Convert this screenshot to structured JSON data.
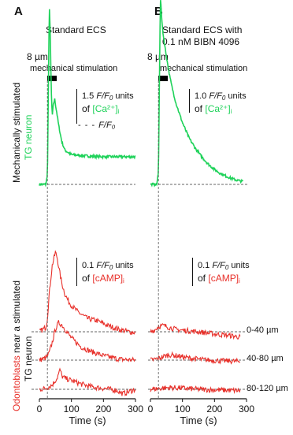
{
  "panels": [
    {
      "letter": "A",
      "condition_line1": "Standard ECS",
      "condition_line2": "",
      "stim_size": "8 µm",
      "stim_label": "mechanical stimulation",
      "ca_scale_value": "1.5",
      "ca_scale_units": "units",
      "ca_label": "[Ca²⁺]",
      "ca_sub": "i",
      "camp_scale_value": "0.1",
      "camp_scale_units": "units",
      "camp_label": "[cAMP]",
      "camp_sub": "i",
      "baseline_legend": "F/F₀"
    },
    {
      "letter": "B",
      "condition_line1": "Standard ECS with",
      "condition_line2": "0.1 nM BIBN 4096",
      "stim_size": "8 µm",
      "stim_label": "mechanical stimulation",
      "ca_scale_value": "1.0",
      "ca_scale_units": "units",
      "ca_label": "[Ca²⁺]",
      "ca_sub": "i",
      "camp_scale_value": "0.1",
      "camp_scale_units": "units",
      "camp_label": "[cAMP]",
      "camp_sub": "i"
    }
  ],
  "left_labels": {
    "top_line1": "Mechanically stimulated",
    "top_line2": "TG neuron",
    "bottom_line1_red": "Odontoblasts",
    "bottom_line1_rest": " near a stimulated",
    "bottom_line2": "TG neuron"
  },
  "ratio_text": "F/F",
  "ratio_sub": "0",
  "of_text": "of",
  "distance_labels": [
    "0-40 µm",
    "40-80 µm",
    "80-120 µm"
  ],
  "chart_data": {
    "type": "line",
    "x_label": "Time (s)",
    "x_ticks": [
      0,
      100,
      200,
      300
    ],
    "xlim": [
      0,
      300
    ],
    "stimulus_time": 25,
    "colors": {
      "ca": "#1fd25a",
      "camp": "#e8302a",
      "axis": "#111111"
    },
    "panels": [
      {
        "letter": "A",
        "ca": [
          [
            0,
            0
          ],
          [
            20,
            0
          ],
          [
            25,
            0.2
          ],
          [
            28,
            2.2
          ],
          [
            31,
            4.2
          ],
          [
            34,
            3.6
          ],
          [
            37,
            2.2
          ],
          [
            40,
            1.6
          ],
          [
            44,
            1.9
          ],
          [
            48,
            2.0
          ],
          [
            52,
            1.8
          ],
          [
            60,
            1.4
          ],
          [
            70,
            1.0
          ],
          [
            80,
            0.8
          ],
          [
            90,
            0.75
          ],
          [
            100,
            0.7
          ],
          [
            130,
            0.68
          ],
          [
            160,
            0.66
          ],
          [
            200,
            0.65
          ],
          [
            250,
            0.65
          ],
          [
            300,
            0.65
          ]
        ],
        "camp": [
          {
            "distance": "0-40 µm",
            "points": [
              [
                0,
                0
              ],
              [
                10,
                0.005
              ],
              [
                20,
                0.01
              ],
              [
                25,
                0.03
              ],
              [
                30,
                0.08
              ],
              [
                40,
                0.15
              ],
              [
                50,
                0.18
              ],
              [
                55,
                0.17
              ],
              [
                62,
                0.14
              ],
              [
                70,
                0.11
              ],
              [
                80,
                0.085
              ],
              [
                90,
                0.07
              ],
              [
                100,
                0.06
              ],
              [
                120,
                0.045
              ],
              [
                150,
                0.03
              ],
              [
                180,
                0.025
              ],
              [
                210,
                0.015
              ],
              [
                250,
                0.005
              ],
              [
                280,
                0.0
              ],
              [
                300,
                -0.002
              ]
            ]
          },
          {
            "distance": "40-80 µm",
            "points": [
              [
                0,
                0
              ],
              [
                20,
                0.005
              ],
              [
                30,
                0.015
              ],
              [
                40,
                0.04
              ],
              [
                50,
                0.07
              ],
              [
                60,
                0.085
              ],
              [
                70,
                0.08
              ],
              [
                80,
                0.07
              ],
              [
                100,
                0.05
              ],
              [
                130,
                0.03
              ],
              [
                160,
                0.02
              ],
              [
                200,
                0.01
              ],
              [
                250,
                0.002
              ],
              [
                300,
                0.0
              ]
            ]
          },
          {
            "distance": "80-120 µm",
            "points": [
              [
                0,
                0
              ],
              [
                20,
                0.002
              ],
              [
                40,
                0.01
              ],
              [
                55,
                0.025
              ],
              [
                65,
                0.045
              ],
              [
                70,
                0.03
              ],
              [
                80,
                0.025
              ],
              [
                100,
                0.02
              ],
              [
                130,
                0.012
              ],
              [
                160,
                0.006
              ],
              [
                200,
                0.002
              ],
              [
                240,
                -0.002
              ],
              [
                260,
                -0.01
              ],
              [
                270,
                -0.008
              ],
              [
                300,
                0.0
              ]
            ]
          }
        ]
      },
      {
        "letter": "B",
        "ca": [
          [
            0,
            0
          ],
          [
            20,
            0
          ],
          [
            25,
            0.3
          ],
          [
            28,
            2.4
          ],
          [
            31,
            4.4
          ],
          [
            33,
            4.2
          ],
          [
            36,
            3.8
          ],
          [
            40,
            3.5
          ],
          [
            50,
            3.0
          ],
          [
            60,
            2.55
          ],
          [
            70,
            2.2
          ],
          [
            80,
            1.9
          ],
          [
            100,
            1.45
          ],
          [
            120,
            1.1
          ],
          [
            140,
            0.85
          ],
          [
            160,
            0.65
          ],
          [
            180,
            0.48
          ],
          [
            200,
            0.35
          ],
          [
            220,
            0.25
          ],
          [
            240,
            0.18
          ],
          [
            260,
            0.12
          ],
          [
            280,
            0.08
          ],
          [
            300,
            0.06
          ]
        ],
        "camp": [
          {
            "distance": "0-40 µm",
            "points": [
              [
                0,
                0
              ],
              [
                15,
                0.005
              ],
              [
                25,
                0.012
              ],
              [
                40,
                0.014
              ],
              [
                60,
                0.01
              ],
              [
                80,
                0.005
              ],
              [
                120,
                0.002
              ],
              [
                160,
                -0.001
              ],
              [
                200,
                -0.005
              ],
              [
                240,
                -0.008
              ],
              [
                280,
                -0.012
              ]
            ]
          },
          {
            "distance": "40-80 µm",
            "points": [
              [
                0,
                0
              ],
              [
                20,
                0.003
              ],
              [
                40,
                0.008
              ],
              [
                60,
                0.012
              ],
              [
                80,
                0.01
              ],
              [
                110,
                0.006
              ],
              [
                150,
                0.002
              ],
              [
                200,
                -0.001
              ],
              [
                250,
                -0.002
              ],
              [
                280,
                -0.003
              ]
            ]
          },
          {
            "distance": "80-120 µm",
            "points": [
              [
                0,
                0
              ],
              [
                30,
                0.002
              ],
              [
                60,
                0.004
              ],
              [
                90,
                0.003
              ],
              [
                130,
                0.001
              ],
              [
                180,
                -0.001
              ],
              [
                230,
                -0.002
              ],
              [
                280,
                -0.003
              ]
            ]
          }
        ]
      }
    ]
  }
}
